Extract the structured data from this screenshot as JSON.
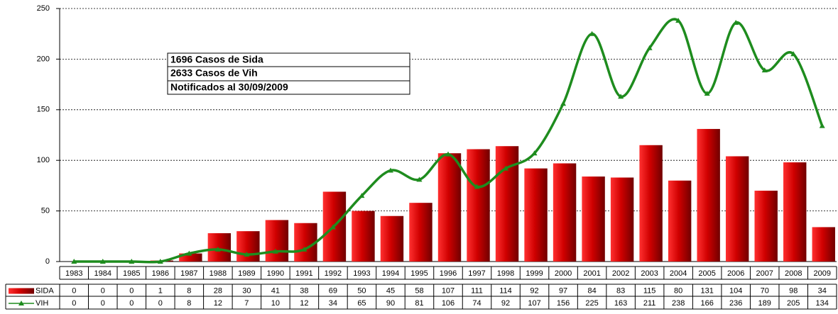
{
  "chart_data": {
    "type": "bar",
    "categories": [
      "1983",
      "1984",
      "1985",
      "1986",
      "1987",
      "1988",
      "1989",
      "1990",
      "1991",
      "1992",
      "1993",
      "1994",
      "1995",
      "1996",
      "1997",
      "1998",
      "1999",
      "2000",
      "2001",
      "2002",
      "2003",
      "2004",
      "2005",
      "2006",
      "2007",
      "2008",
      "2009"
    ],
    "series": [
      {
        "name": "SIDA",
        "type": "bar",
        "color": "#cc0000",
        "values": [
          0,
          0,
          0,
          1,
          8,
          28,
          30,
          41,
          38,
          69,
          50,
          45,
          58,
          107,
          111,
          114,
          92,
          97,
          84,
          83,
          115,
          80,
          131,
          104,
          70,
          98,
          34
        ]
      },
      {
        "name": "VIH",
        "type": "line",
        "color": "#1e8c1e",
        "values": [
          0,
          0,
          0,
          0,
          8,
          12,
          7,
          10,
          12,
          34,
          65,
          90,
          81,
          106,
          74,
          92,
          107,
          156,
          225,
          163,
          211,
          238,
          166,
          236,
          189,
          205,
          134
        ]
      }
    ],
    "ylim": [
      0,
      250
    ],
    "yticks": [
      0,
      50,
      100,
      150,
      200,
      250
    ],
    "grid": true,
    "annotations": [
      "1696  Casos de Sida",
      "2633  Casos de Vih",
      "Notificados al 30/09/2009"
    ]
  }
}
